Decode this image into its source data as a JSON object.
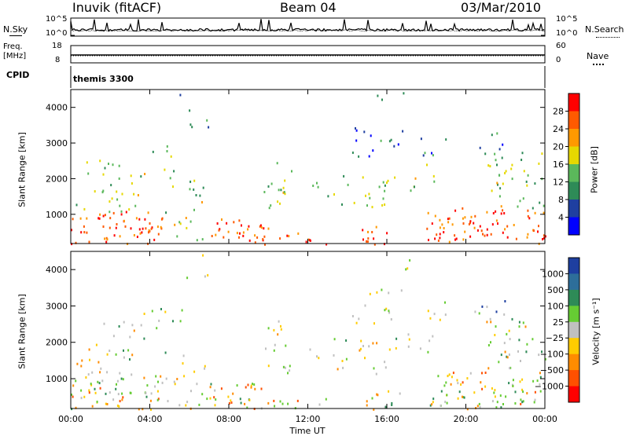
{
  "header": {
    "station": "Inuvik (fitACF)",
    "beam": "Beam 04",
    "date": "03/Mar/2010"
  },
  "noise_panel": {
    "left_label": "N.Sky",
    "right_label": "N.Search",
    "left_ticks": [
      "10^5",
      "10^0"
    ],
    "right_ticks": [
      "10^5",
      "10^0"
    ]
  },
  "freq_panel": {
    "left_label_line1": "Freq.",
    "left_label_line2": "[MHz]",
    "left_ticks": [
      "18",
      "8"
    ],
    "right_ticks": [
      "60",
      "0"
    ],
    "right_label": "Nave"
  },
  "cpid_panel": {
    "label": "CPID",
    "program": "themis 3300"
  },
  "colors": {
    "power_scale": [
      "#0000ff",
      "#1f3fa0",
      "#2e8b57",
      "#5bb85b",
      "#e6d800",
      "#ff9900",
      "#ff5a00",
      "#ff0000"
    ],
    "velocity_scale": [
      "#1e3fa0",
      "#2d6e9a",
      "#2e8b57",
      "#66cc33",
      "#c0c0c0",
      "#ffcc00",
      "#ff8c00",
      "#ff5000",
      "#ff0000"
    ]
  },
  "chart_data": [
    {
      "type": "heatmap",
      "name": "power",
      "xlabel": "",
      "ylabel": "Slant Range [km]",
      "x_ticks": [
        "00:00",
        "04:00",
        "08:00",
        "12:00",
        "16:00",
        "20:00",
        "00:00"
      ],
      "xlim": [
        0,
        24
      ],
      "y_ticks": [
        1000,
        2000,
        3000,
        4000
      ],
      "ylim": [
        180,
        4500
      ],
      "colorbar": {
        "label": "Power [dB]",
        "ticks": [
          "28",
          "24",
          "20",
          "16",
          "12",
          "8",
          "4"
        ],
        "range": [
          0,
          32
        ]
      }
    },
    {
      "type": "heatmap",
      "name": "velocity",
      "xlabel": "Time UT",
      "ylabel": "Slant Range [km]",
      "x_ticks": [
        "00:00",
        "04:00",
        "08:00",
        "12:00",
        "16:00",
        "20:00",
        "00:00"
      ],
      "xlim": [
        0,
        24
      ],
      "y_ticks": [
        1000,
        2000,
        3000,
        4000
      ],
      "ylim": [
        180,
        4500
      ],
      "colorbar": {
        "label": "Velocity [m s⁻¹]",
        "ticks": [
          "1000",
          "500",
          "100",
          "25",
          "−25",
          "−100",
          "−500",
          "−1000"
        ]
      }
    }
  ]
}
